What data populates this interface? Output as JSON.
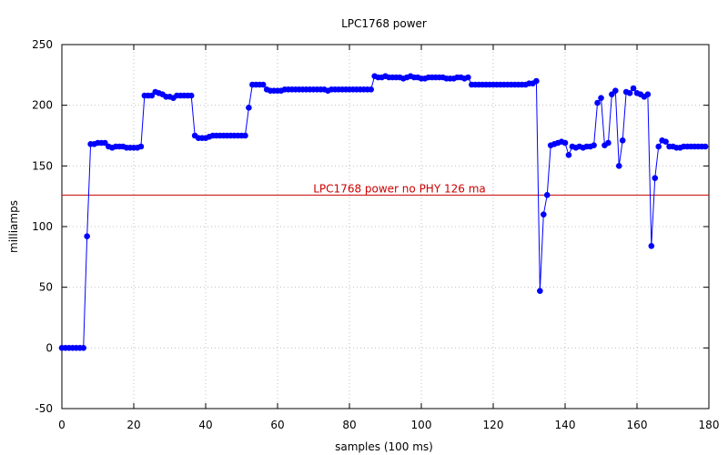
{
  "chart_data": {
    "type": "line",
    "title": "LPC1768 power",
    "xlabel": "samples (100 ms)",
    "ylabel": "milliamps",
    "xlim": [
      0,
      180
    ],
    "ylim": [
      -50,
      250
    ],
    "x_ticks": [
      "0",
      "20",
      "40",
      "60",
      "80",
      "100",
      "120",
      "140",
      "160",
      "180"
    ],
    "y_ticks": [
      "-50",
      "0",
      "50",
      "100",
      "150",
      "200",
      "250"
    ],
    "grid": true,
    "colors": {
      "series": "#0000ff",
      "reference": "#cc0000",
      "grid": "#c0c0c0"
    },
    "series": [
      {
        "values": [
          0,
          0,
          0,
          0,
          0,
          0,
          0,
          92,
          168,
          168,
          169,
          169,
          169,
          166,
          165,
          166,
          166,
          166,
          165,
          165,
          165,
          165,
          166,
          208,
          208,
          208,
          211,
          210,
          209,
          207,
          207,
          206,
          208,
          208,
          208,
          208,
          208,
          175,
          173,
          173,
          173,
          174,
          175,
          175,
          175,
          175,
          175,
          175,
          175,
          175,
          175,
          175,
          198,
          217,
          217,
          217,
          217,
          213,
          212,
          212,
          212,
          212,
          213,
          213,
          213,
          213,
          213,
          213,
          213,
          213,
          213,
          213,
          213,
          213,
          212,
          213,
          213,
          213,
          213,
          213,
          213,
          213,
          213,
          213,
          213,
          213,
          213,
          224,
          223,
          223,
          224,
          223,
          223,
          223,
          223,
          222,
          223,
          224,
          223,
          223,
          222,
          222,
          223,
          223,
          223,
          223,
          223,
          222,
          222,
          222,
          223,
          223,
          222,
          223,
          217,
          217,
          217,
          217,
          217,
          217,
          217,
          217,
          217,
          217,
          217,
          217,
          217,
          217,
          217,
          217,
          218,
          218,
          220,
          47,
          110,
          126,
          167,
          168,
          169,
          170,
          169,
          159,
          166,
          165,
          166,
          165,
          166,
          166,
          167,
          202,
          206,
          167,
          169,
          209,
          212,
          150,
          171,
          211,
          210,
          214,
          210,
          209,
          207,
          209,
          84,
          140,
          166,
          171,
          170,
          166,
          166,
          165,
          165,
          166,
          166,
          166,
          166,
          166,
          166,
          166
        ]
      }
    ],
    "reference_lines": [
      {
        "label": "LPC1768 power no PHY 126 ma",
        "y": 126
      }
    ]
  }
}
